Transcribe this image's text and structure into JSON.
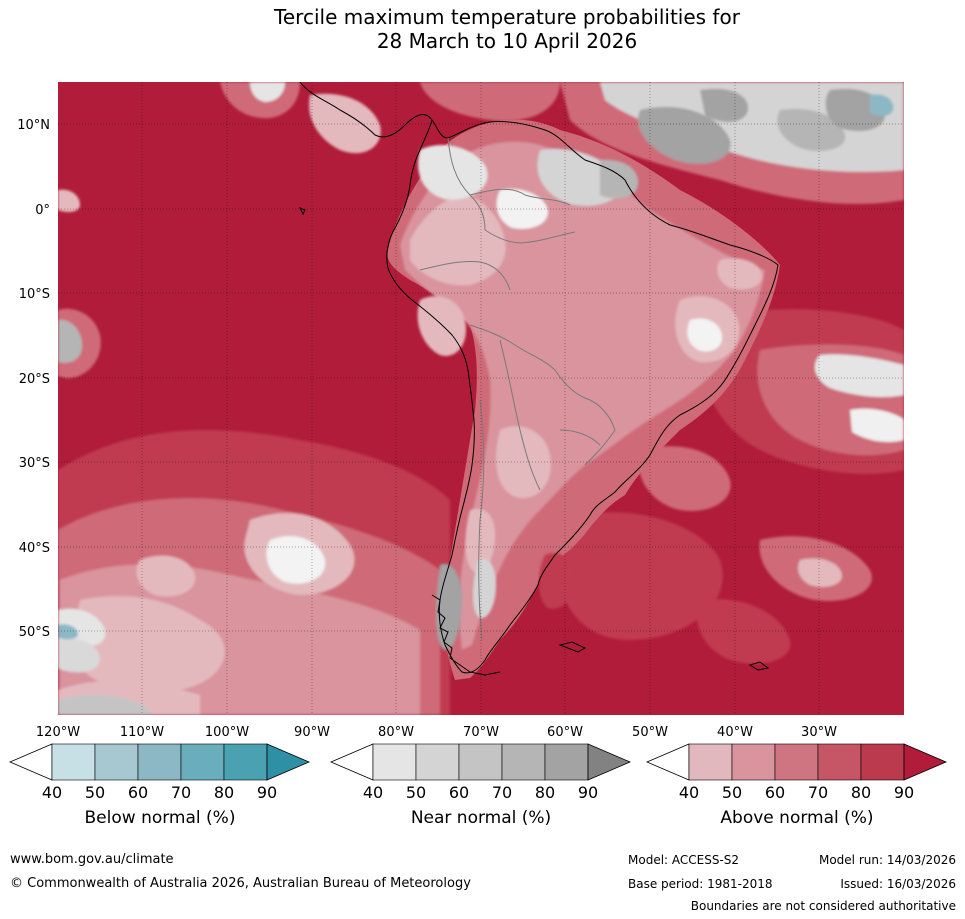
{
  "title": {
    "line1": "Tercile maximum temperature probabilities for",
    "line2": "28 March to 10 April 2026"
  },
  "map": {
    "lat_labels": [
      "10°N",
      "0°",
      "10°S",
      "20°S",
      "30°S",
      "40°S",
      "50°S"
    ],
    "lon_labels": [
      "120°W",
      "110°W",
      "100°W",
      "90°W",
      "80°W",
      "70°W",
      "60°W",
      "50°W",
      "40°W",
      "30°W"
    ],
    "extent": {
      "lon_min": -120,
      "lon_max": -20,
      "lat_min": -60,
      "lat_max": 15
    }
  },
  "colorbars": [
    {
      "id": "below",
      "title": "Below normal (%)",
      "ticks": [
        "40",
        "50",
        "60",
        "70",
        "80",
        "90"
      ],
      "colors": [
        "#ffffff",
        "#c6e0e6",
        "#a7c8d0",
        "#8bb8c4",
        "#6aaebe",
        "#4aa1b2",
        "#2f8fa5"
      ]
    },
    {
      "id": "near",
      "title": "Near normal (%)",
      "ticks": [
        "40",
        "50",
        "60",
        "70",
        "80",
        "90"
      ],
      "colors": [
        "#ffffff",
        "#e5e5e5",
        "#d4d4d4",
        "#c4c4c4",
        "#b5b5b5",
        "#a3a3a3",
        "#828282"
      ]
    },
    {
      "id": "above",
      "title": "Above normal (%)",
      "ticks": [
        "40",
        "50",
        "60",
        "70",
        "80",
        "90"
      ],
      "colors": [
        "#ffffff",
        "#e1b8bd",
        "#d9949e",
        "#cf7582",
        "#c65566",
        "#bc3a4d",
        "#b01c39"
      ]
    }
  ],
  "palette": {
    "ocean_hot": "#b01c39",
    "above_80": "#c03a50",
    "above_70": "#cf6a78",
    "above_60": "#d9949e",
    "above_50": "#e3b9be",
    "near_lo": "#d9d9d9",
    "near_hi": "#a3a3a3",
    "below": "#8bb8c4"
  },
  "footer": {
    "url": "www.bom.gov.au/climate",
    "copyright": "© Commonwealth of Australia 2026, Australian Bureau of Meteorology",
    "model": "Model: ACCESS-S2",
    "base_period": "Base period: 1981-2018",
    "model_run": "Model run: 14/03/2026",
    "issued": "Issued: 16/03/2026",
    "disclaimer": "Boundaries are not considered authoritative"
  }
}
